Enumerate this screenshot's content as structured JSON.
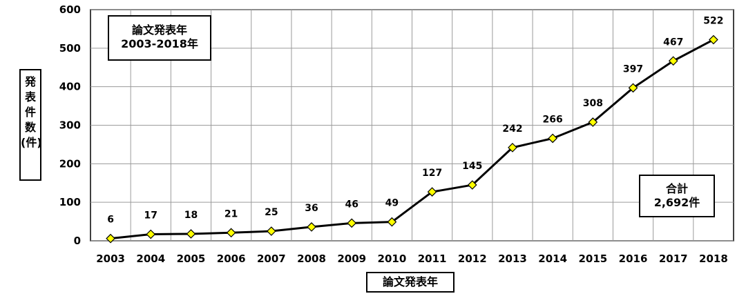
{
  "chart_data": {
    "type": "line",
    "categories": [
      "2003",
      "2004",
      "2005",
      "2006",
      "2007",
      "2008",
      "2009",
      "2010",
      "2011",
      "2012",
      "2013",
      "2014",
      "2015",
      "2016",
      "2017",
      "2018"
    ],
    "values": [
      6,
      17,
      18,
      21,
      25,
      36,
      46,
      49,
      127,
      145,
      242,
      266,
      308,
      397,
      467,
      522
    ],
    "ylim": [
      0,
      600
    ],
    "yticks": [
      0,
      100,
      200,
      300,
      400,
      500,
      600
    ],
    "grid": true,
    "title_lines": [
      "論文発表年",
      "2003-2018年"
    ],
    "total_lines": [
      "合計",
      "2,692件"
    ],
    "xlabel": "論文発表年",
    "ylabel_chars": [
      "発",
      "表",
      "件",
      "数",
      "(件)"
    ],
    "line_color": "#000000",
    "marker_color": "#FFFF00",
    "marker_shape": "diamond"
  }
}
